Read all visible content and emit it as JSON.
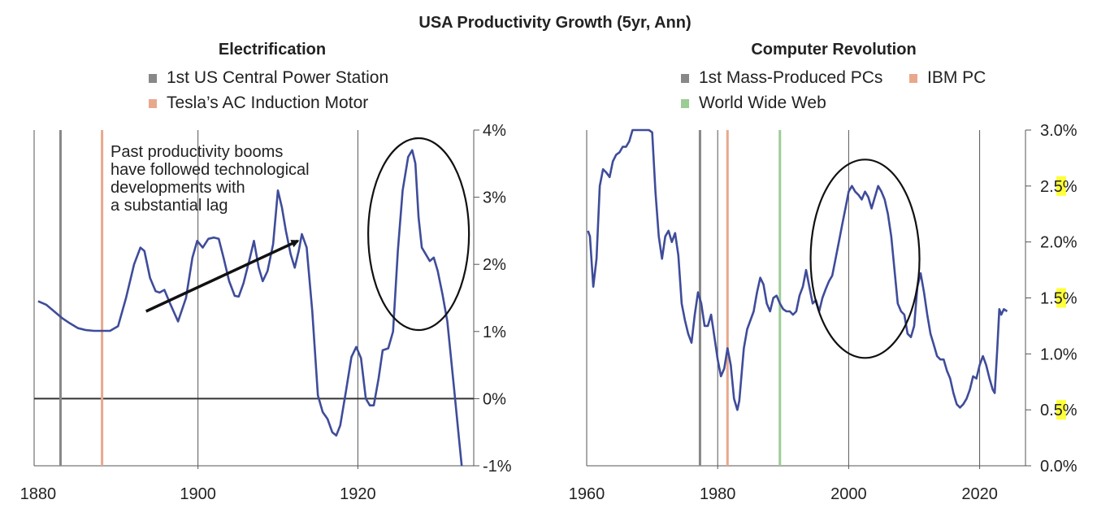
{
  "title": "USA Productivity Growth (5yr, Ann)",
  "panels": {
    "left": {
      "title": "Electrification",
      "legend": [
        {
          "label": "1st US Central Power Station",
          "color": "#888888"
        },
        {
          "label": "Tesla’s AC Induction Motor",
          "color": "#e8a88c"
        }
      ],
      "annotation": [
        "Past productivity booms",
        "have followed technological",
        "developments with",
        "a substantial lag"
      ]
    },
    "right": {
      "title": "Computer Revolution",
      "legend": [
        {
          "label": "1st Mass-Produced PCs",
          "color": "#888888"
        },
        {
          "label": "IBM PC",
          "color": "#e8a88c"
        },
        {
          "label": "World Wide Web",
          "color": "#9ccc95"
        }
      ]
    }
  },
  "chart_data": [
    {
      "type": "line",
      "title": "Electrification",
      "xlabel": "",
      "ylabel": "",
      "xlim": [
        1879.5,
        1934.5
      ],
      "ylim": [
        -1,
        4
      ],
      "x_ticks": [
        1880,
        1900,
        1920
      ],
      "y_ticks": [
        {
          "value": 4,
          "label": "4%"
        },
        {
          "value": 3,
          "label": "3%"
        },
        {
          "value": 2,
          "label": "2%"
        },
        {
          "value": 1,
          "label": "1%"
        },
        {
          "value": 0,
          "label": "0%"
        },
        {
          "value": -1,
          "label": "-1%"
        }
      ],
      "x_tick_labels": [
        "1880",
        "1900",
        "1920"
      ],
      "vlines": [
        {
          "x": 1882.8,
          "color": "#888888",
          "name": "1st US Central Power Station"
        },
        {
          "x": 1888,
          "color": "#e8a88c",
          "name": "Tesla’s AC Induction Motor"
        }
      ],
      "series": [
        {
          "color": "#3f4c9a",
          "points": [
            [
              1880,
              1.45
            ],
            [
              1881,
              1.4
            ],
            [
              1882,
              1.3
            ],
            [
              1883,
              1.2
            ],
            [
              1884,
              1.12
            ],
            [
              1885,
              1.05
            ],
            [
              1886,
              1.02
            ],
            [
              1887,
              1.01
            ],
            [
              1888,
              1.01
            ],
            [
              1889,
              1.01
            ],
            [
              1890,
              1.08
            ],
            [
              1891,
              1.5
            ],
            [
              1892,
              2.0
            ],
            [
              1892.8,
              2.25
            ],
            [
              1893.3,
              2.2
            ],
            [
              1894,
              1.8
            ],
            [
              1894.7,
              1.6
            ],
            [
              1895.2,
              1.58
            ],
            [
              1895.8,
              1.62
            ],
            [
              1896.5,
              1.42
            ],
            [
              1897.5,
              1.15
            ],
            [
              1898.5,
              1.5
            ],
            [
              1899.3,
              2.1
            ],
            [
              1899.9,
              2.35
            ],
            [
              1900.6,
              2.25
            ],
            [
              1901.3,
              2.38
            ],
            [
              1902,
              2.4
            ],
            [
              1902.6,
              2.38
            ],
            [
              1903.2,
              2.1
            ],
            [
              1903.9,
              1.75
            ],
            [
              1904.6,
              1.53
            ],
            [
              1905.1,
              1.52
            ],
            [
              1905.7,
              1.72
            ],
            [
              1906.4,
              2.05
            ],
            [
              1907,
              2.35
            ],
            [
              1907.6,
              1.95
            ],
            [
              1908.1,
              1.75
            ],
            [
              1908.7,
              1.9
            ],
            [
              1909.4,
              2.3
            ],
            [
              1910,
              3.1
            ],
            [
              1910.5,
              2.85
            ],
            [
              1911,
              2.5
            ],
            [
              1911.6,
              2.15
            ],
            [
              1912.1,
              1.95
            ],
            [
              1912.6,
              2.2
            ],
            [
              1913,
              2.45
            ],
            [
              1913.6,
              2.25
            ],
            [
              1914.3,
              1.3
            ],
            [
              1915,
              0.05
            ],
            [
              1915.6,
              -0.2
            ],
            [
              1916.2,
              -0.3
            ],
            [
              1916.8,
              -0.5
            ],
            [
              1917.3,
              -0.55
            ],
            [
              1917.8,
              -0.4
            ],
            [
              1918.5,
              0.1
            ],
            [
              1919.2,
              0.62
            ],
            [
              1919.8,
              0.77
            ],
            [
              1920.4,
              0.6
            ],
            [
              1921,
              0.0
            ],
            [
              1921.5,
              -0.1
            ],
            [
              1922,
              -0.1
            ],
            [
              1922.6,
              0.3
            ],
            [
              1923.1,
              0.72
            ],
            [
              1923.8,
              0.75
            ],
            [
              1924.4,
              1.0
            ],
            [
              1925,
              2.2
            ],
            [
              1925.6,
              3.1
            ],
            [
              1926.3,
              3.6
            ],
            [
              1926.8,
              3.7
            ],
            [
              1927.2,
              3.5
            ],
            [
              1927.6,
              2.7
            ],
            [
              1928,
              2.25
            ],
            [
              1928.5,
              2.15
            ],
            [
              1929,
              2.05
            ],
            [
              1929.5,
              2.1
            ],
            [
              1930,
              1.9
            ],
            [
              1930.6,
              1.55
            ],
            [
              1931.2,
              1.15
            ],
            [
              1932,
              0.2
            ],
            [
              1932.7,
              -0.65
            ],
            [
              1933,
              -1.0
            ]
          ]
        }
      ],
      "highlights": [
        {
          "type": "ellipse",
          "x": 1927.6,
          "y": 2.45
        }
      ],
      "arrow": {
        "from": [
          1893.5,
          1.3
        ],
        "to": [
          1912.5,
          2.35
        ]
      }
    },
    {
      "type": "line",
      "title": "Computer Revolution",
      "xlabel": "",
      "ylabel": "",
      "xlim": [
        1960,
        2027
      ],
      "ylim": [
        0,
        3
      ],
      "x_ticks": [
        1960,
        1980,
        2000,
        2020
      ],
      "y_ticks": [
        {
          "value": 3.0,
          "label": "3.0%"
        },
        {
          "value": 2.5,
          "label": "2.5%"
        },
        {
          "value": 2.0,
          "label": "2.0%"
        },
        {
          "value": 1.5,
          "label": "1.5%"
        },
        {
          "value": 1.0,
          "label": "1.0%"
        },
        {
          "value": 0.5,
          "label": "0.5%"
        },
        {
          "value": 0.0,
          "label": "0.0%"
        }
      ],
      "x_tick_labels": [
        "1960",
        "1980",
        "2000",
        "2020"
      ],
      "vlines": [
        {
          "x": 1977.3,
          "color": "#888888",
          "name": "1st Mass-Produced PCs"
        },
        {
          "x": 1981.5,
          "color": "#e8a88c",
          "name": "IBM PC"
        },
        {
          "x": 1989.5,
          "color": "#9ccc95",
          "name": "World Wide Web"
        }
      ],
      "series": [
        {
          "color": "#3f4c9a",
          "points": [
            [
              1960.2,
              2.1
            ],
            [
              1960.5,
              2.05
            ],
            [
              1961,
              1.6
            ],
            [
              1961.5,
              1.85
            ],
            [
              1962,
              2.5
            ],
            [
              1962.5,
              2.65
            ],
            [
              1963,
              2.62
            ],
            [
              1963.5,
              2.58
            ],
            [
              1964,
              2.72
            ],
            [
              1964.5,
              2.78
            ],
            [
              1965,
              2.8
            ],
            [
              1965.5,
              2.85
            ],
            [
              1966,
              2.85
            ],
            [
              1966.5,
              2.9
            ],
            [
              1967,
              3.02
            ],
            [
              1967.5,
              3.02
            ],
            [
              1968,
              3.02
            ],
            [
              1968.5,
              3.05
            ],
            [
              1969,
              3.05
            ],
            [
              1969.5,
              3.02
            ],
            [
              1970,
              2.98
            ],
            [
              1970.5,
              2.45
            ],
            [
              1971,
              2.05
            ],
            [
              1971.5,
              1.85
            ],
            [
              1972,
              2.05
            ],
            [
              1972.5,
              2.1
            ],
            [
              1973,
              2.0
            ],
            [
              1973.5,
              2.08
            ],
            [
              1974,
              1.88
            ],
            [
              1974.5,
              1.45
            ],
            [
              1975,
              1.3
            ],
            [
              1975.5,
              1.18
            ],
            [
              1976,
              1.1
            ],
            [
              1976.5,
              1.35
            ],
            [
              1977,
              1.55
            ],
            [
              1977.5,
              1.45
            ],
            [
              1978,
              1.25
            ],
            [
              1978.5,
              1.25
            ],
            [
              1979,
              1.35
            ],
            [
              1979.5,
              1.15
            ],
            [
              1980,
              0.95
            ],
            [
              1980.5,
              0.8
            ],
            [
              1981,
              0.87
            ],
            [
              1981.5,
              1.05
            ],
            [
              1982,
              0.9
            ],
            [
              1982.5,
              0.6
            ],
            [
              1983,
              0.5
            ],
            [
              1983.3,
              0.58
            ],
            [
              1983.7,
              0.85
            ],
            [
              1984,
              1.05
            ],
            [
              1984.5,
              1.22
            ],
            [
              1985,
              1.3
            ],
            [
              1985.5,
              1.38
            ],
            [
              1986,
              1.55
            ],
            [
              1986.5,
              1.68
            ],
            [
              1987,
              1.62
            ],
            [
              1987.5,
              1.45
            ],
            [
              1988,
              1.38
            ],
            [
              1988.5,
              1.5
            ],
            [
              1989,
              1.52
            ],
            [
              1989.5,
              1.45
            ],
            [
              1990,
              1.4
            ],
            [
              1990.5,
              1.38
            ],
            [
              1991,
              1.38
            ],
            [
              1991.5,
              1.35
            ],
            [
              1992,
              1.38
            ],
            [
              1992.5,
              1.52
            ],
            [
              1993,
              1.6
            ],
            [
              1993.5,
              1.75
            ],
            [
              1994,
              1.6
            ],
            [
              1994.5,
              1.45
            ],
            [
              1995,
              1.48
            ],
            [
              1995.5,
              1.38
            ],
            [
              1996,
              1.5
            ],
            [
              1996.5,
              1.58
            ],
            [
              1997,
              1.65
            ],
            [
              1997.5,
              1.7
            ],
            [
              1998,
              1.85
            ],
            [
              1998.5,
              2.0
            ],
            [
              1999,
              2.15
            ],
            [
              1999.5,
              2.3
            ],
            [
              2000,
              2.45
            ],
            [
              2000.5,
              2.5
            ],
            [
              2001,
              2.45
            ],
            [
              2001.5,
              2.42
            ],
            [
              2002,
              2.38
            ],
            [
              2002.5,
              2.45
            ],
            [
              2003,
              2.4
            ],
            [
              2003.5,
              2.3
            ],
            [
              2004,
              2.4
            ],
            [
              2004.5,
              2.5
            ],
            [
              2005,
              2.45
            ],
            [
              2005.5,
              2.38
            ],
            [
              2006,
              2.25
            ],
            [
              2006.5,
              2.05
            ],
            [
              2007,
              1.75
            ],
            [
              2007.5,
              1.45
            ],
            [
              2008,
              1.38
            ],
            [
              2008.5,
              1.35
            ],
            [
              2009,
              1.18
            ],
            [
              2009.5,
              1.15
            ],
            [
              2010,
              1.25
            ],
            [
              2010.5,
              1.6
            ],
            [
              2011,
              1.72
            ],
            [
              2011.5,
              1.55
            ],
            [
              2012,
              1.35
            ],
            [
              2012.5,
              1.18
            ],
            [
              2013,
              1.08
            ],
            [
              2013.5,
              0.98
            ],
            [
              2014,
              0.95
            ],
            [
              2014.5,
              0.95
            ],
            [
              2015,
              0.85
            ],
            [
              2015.5,
              0.78
            ],
            [
              2016,
              0.65
            ],
            [
              2016.5,
              0.55
            ],
            [
              2017,
              0.52
            ],
            [
              2017.5,
              0.55
            ],
            [
              2018,
              0.6
            ],
            [
              2018.5,
              0.68
            ],
            [
              2019,
              0.8
            ],
            [
              2019.5,
              0.78
            ],
            [
              2020,
              0.9
            ],
            [
              2020.5,
              0.98
            ],
            [
              2021,
              0.9
            ],
            [
              2021.5,
              0.78
            ],
            [
              2022,
              0.68
            ],
            [
              2022.3,
              0.65
            ],
            [
              2022.7,
              1.05
            ],
            [
              2023,
              1.4
            ],
            [
              2023.3,
              1.35
            ],
            [
              2023.7,
              1.4
            ],
            [
              2024.2,
              1.38
            ]
          ]
        }
      ],
      "highlights": [
        {
          "type": "ellipse",
          "x": 2002.5,
          "y": 1.85
        }
      ]
    }
  ]
}
